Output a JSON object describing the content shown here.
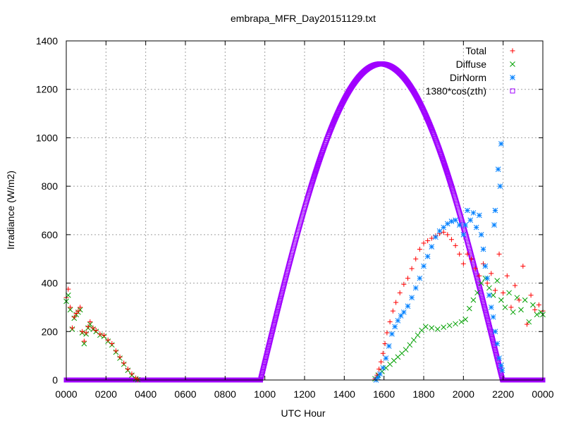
{
  "chart_data": {
    "type": "scatter",
    "title": "embrapa_MFR_Day20151129.txt",
    "xlabel": "UTC Hour",
    "ylabel": "Irradiance (W/m2)",
    "xlim": [
      0,
      24
    ],
    "ylim": [
      0,
      1400
    ],
    "x_ticks": [
      0,
      2,
      4,
      6,
      8,
      10,
      12,
      14,
      16,
      18,
      20,
      22,
      24
    ],
    "x_tick_labels": [
      "0000",
      "0200",
      "0400",
      "0600",
      "0800",
      "1000",
      "1200",
      "1400",
      "1600",
      "1800",
      "2000",
      "2200",
      "0000"
    ],
    "y_ticks": [
      0,
      200,
      400,
      600,
      800,
      1000,
      1200,
      1400
    ],
    "y_tick_labels": [
      "0",
      "200",
      "400",
      "600",
      "800",
      "1000",
      "1200",
      "1400"
    ],
    "grid": true,
    "legend_position": "top-right",
    "series": [
      {
        "name": "Total",
        "color": "#ff0000",
        "marker": "plus",
        "points": [
          [
            0.0,
            340
          ],
          [
            0.1,
            375
          ],
          [
            0.2,
            300
          ],
          [
            0.3,
            215
          ],
          [
            0.4,
            260
          ],
          [
            0.5,
            275
          ],
          [
            0.6,
            285
          ],
          [
            0.7,
            300
          ],
          [
            0.8,
            200
          ],
          [
            0.9,
            160
          ],
          [
            1.0,
            195
          ],
          [
            1.1,
            220
          ],
          [
            1.2,
            240
          ],
          [
            1.35,
            215
          ],
          [
            1.5,
            205
          ],
          [
            1.7,
            190
          ],
          [
            1.9,
            185
          ],
          [
            2.1,
            165
          ],
          [
            2.3,
            150
          ],
          [
            2.5,
            120
          ],
          [
            2.7,
            95
          ],
          [
            2.9,
            70
          ],
          [
            3.1,
            45
          ],
          [
            3.3,
            25
          ],
          [
            3.5,
            8
          ],
          [
            3.6,
            2
          ],
          [
            15.55,
            5
          ],
          [
            15.65,
            20
          ],
          [
            15.75,
            45
          ],
          [
            15.85,
            75
          ],
          [
            15.95,
            110
          ],
          [
            16.05,
            150
          ],
          [
            16.15,
            195
          ],
          [
            16.3,
            240
          ],
          [
            16.45,
            285
          ],
          [
            16.6,
            320
          ],
          [
            16.8,
            360
          ],
          [
            17.0,
            395
          ],
          [
            17.2,
            420
          ],
          [
            17.4,
            460
          ],
          [
            17.6,
            500
          ],
          [
            17.8,
            540
          ],
          [
            18.0,
            565
          ],
          [
            18.2,
            575
          ],
          [
            18.4,
            585
          ],
          [
            18.6,
            595
          ],
          [
            18.8,
            605
          ],
          [
            19.0,
            610
          ],
          [
            19.2,
            600
          ],
          [
            19.4,
            580
          ],
          [
            19.6,
            555
          ],
          [
            19.8,
            520
          ],
          [
            20.0,
            480
          ],
          [
            20.2,
            520
          ],
          [
            20.4,
            500
          ],
          [
            20.6,
            460
          ],
          [
            20.8,
            430
          ],
          [
            21.0,
            480
          ],
          [
            21.2,
            400
          ],
          [
            21.4,
            440
          ],
          [
            21.6,
            370
          ],
          [
            21.8,
            520
          ],
          [
            22.0,
            360
          ],
          [
            22.2,
            430
          ],
          [
            22.4,
            300
          ],
          [
            22.6,
            390
          ],
          [
            22.8,
            330
          ],
          [
            23.0,
            470
          ],
          [
            23.2,
            230
          ],
          [
            23.4,
            350
          ],
          [
            23.6,
            290
          ],
          [
            23.8,
            310
          ],
          [
            24.0,
            285
          ]
        ]
      },
      {
        "name": "Diffuse",
        "color": "#00a000",
        "marker": "cross",
        "points": [
          [
            0.0,
            325
          ],
          [
            0.1,
            350
          ],
          [
            0.2,
            290
          ],
          [
            0.3,
            210
          ],
          [
            0.4,
            255
          ],
          [
            0.5,
            270
          ],
          [
            0.6,
            280
          ],
          [
            0.7,
            290
          ],
          [
            0.8,
            195
          ],
          [
            0.9,
            150
          ],
          [
            1.0,
            190
          ],
          [
            1.1,
            215
          ],
          [
            1.2,
            230
          ],
          [
            1.35,
            210
          ],
          [
            1.5,
            200
          ],
          [
            1.7,
            185
          ],
          [
            1.9,
            180
          ],
          [
            2.1,
            160
          ],
          [
            2.3,
            145
          ],
          [
            2.5,
            115
          ],
          [
            2.7,
            90
          ],
          [
            2.9,
            65
          ],
          [
            3.1,
            40
          ],
          [
            3.3,
            20
          ],
          [
            3.5,
            5
          ],
          [
            3.6,
            1
          ],
          [
            15.55,
            5
          ],
          [
            15.7,
            20
          ],
          [
            15.9,
            35
          ],
          [
            16.1,
            50
          ],
          [
            16.3,
            65
          ],
          [
            16.5,
            80
          ],
          [
            16.7,
            95
          ],
          [
            16.9,
            110
          ],
          [
            17.1,
            125
          ],
          [
            17.3,
            145
          ],
          [
            17.5,
            165
          ],
          [
            17.7,
            185
          ],
          [
            17.9,
            205
          ],
          [
            18.1,
            220
          ],
          [
            18.4,
            215
          ],
          [
            18.7,
            210
          ],
          [
            19.0,
            218
          ],
          [
            19.3,
            225
          ],
          [
            19.6,
            232
          ],
          [
            19.9,
            240
          ],
          [
            20.1,
            250
          ],
          [
            20.3,
            295
          ],
          [
            20.5,
            330
          ],
          [
            20.7,
            360
          ],
          [
            20.9,
            400
          ],
          [
            21.1,
            420
          ],
          [
            21.3,
            380
          ],
          [
            21.5,
            350
          ],
          [
            21.7,
            410
          ],
          [
            21.9,
            330
          ],
          [
            22.1,
            300
          ],
          [
            22.3,
            360
          ],
          [
            22.5,
            280
          ],
          [
            22.7,
            340
          ],
          [
            22.9,
            290
          ],
          [
            23.1,
            330
          ],
          [
            23.3,
            240
          ],
          [
            23.5,
            310
          ],
          [
            23.7,
            270
          ],
          [
            23.9,
            280
          ],
          [
            24.0,
            270
          ]
        ]
      },
      {
        "name": "DirNorm",
        "color": "#0080ff",
        "marker": "star",
        "points": [
          [
            15.6,
            0
          ],
          [
            15.7,
            10
          ],
          [
            15.8,
            25
          ],
          [
            15.95,
            50
          ],
          [
            16.1,
            90
          ],
          [
            16.25,
            140
          ],
          [
            16.4,
            190
          ],
          [
            16.55,
            220
          ],
          [
            16.7,
            245
          ],
          [
            16.85,
            265
          ],
          [
            17.0,
            280
          ],
          [
            17.2,
            305
          ],
          [
            17.4,
            340
          ],
          [
            17.6,
            380
          ],
          [
            17.8,
            420
          ],
          [
            18.0,
            470
          ],
          [
            18.2,
            510
          ],
          [
            18.4,
            550
          ],
          [
            18.6,
            590
          ],
          [
            18.8,
            615
          ],
          [
            19.0,
            630
          ],
          [
            19.2,
            645
          ],
          [
            19.4,
            655
          ],
          [
            19.6,
            660
          ],
          [
            19.8,
            640
          ],
          [
            20.0,
            600
          ],
          [
            20.1,
            640
          ],
          [
            20.2,
            700
          ],
          [
            20.35,
            660
          ],
          [
            20.5,
            690
          ],
          [
            20.65,
            630
          ],
          [
            20.8,
            680
          ],
          [
            20.9,
            600
          ],
          [
            21.0,
            540
          ],
          [
            21.1,
            470
          ],
          [
            21.2,
            420
          ],
          [
            21.3,
            350
          ],
          [
            21.4,
            300
          ],
          [
            21.5,
            260
          ],
          [
            21.6,
            200
          ],
          [
            21.7,
            150
          ],
          [
            21.8,
            90
          ],
          [
            21.9,
            60
          ],
          [
            21.95,
            40
          ],
          [
            21.75,
            870
          ],
          [
            21.85,
            800
          ],
          [
            21.9,
            975
          ],
          [
            21.6,
            700
          ],
          [
            21.55,
            640
          ]
        ]
      },
      {
        "name": "1380*cos(zth)",
        "color": "#a000ff",
        "marker": "square",
        "sunrise": 9.78,
        "sunset": 21.97,
        "noon": 15.85,
        "peak": 1305
      }
    ]
  }
}
